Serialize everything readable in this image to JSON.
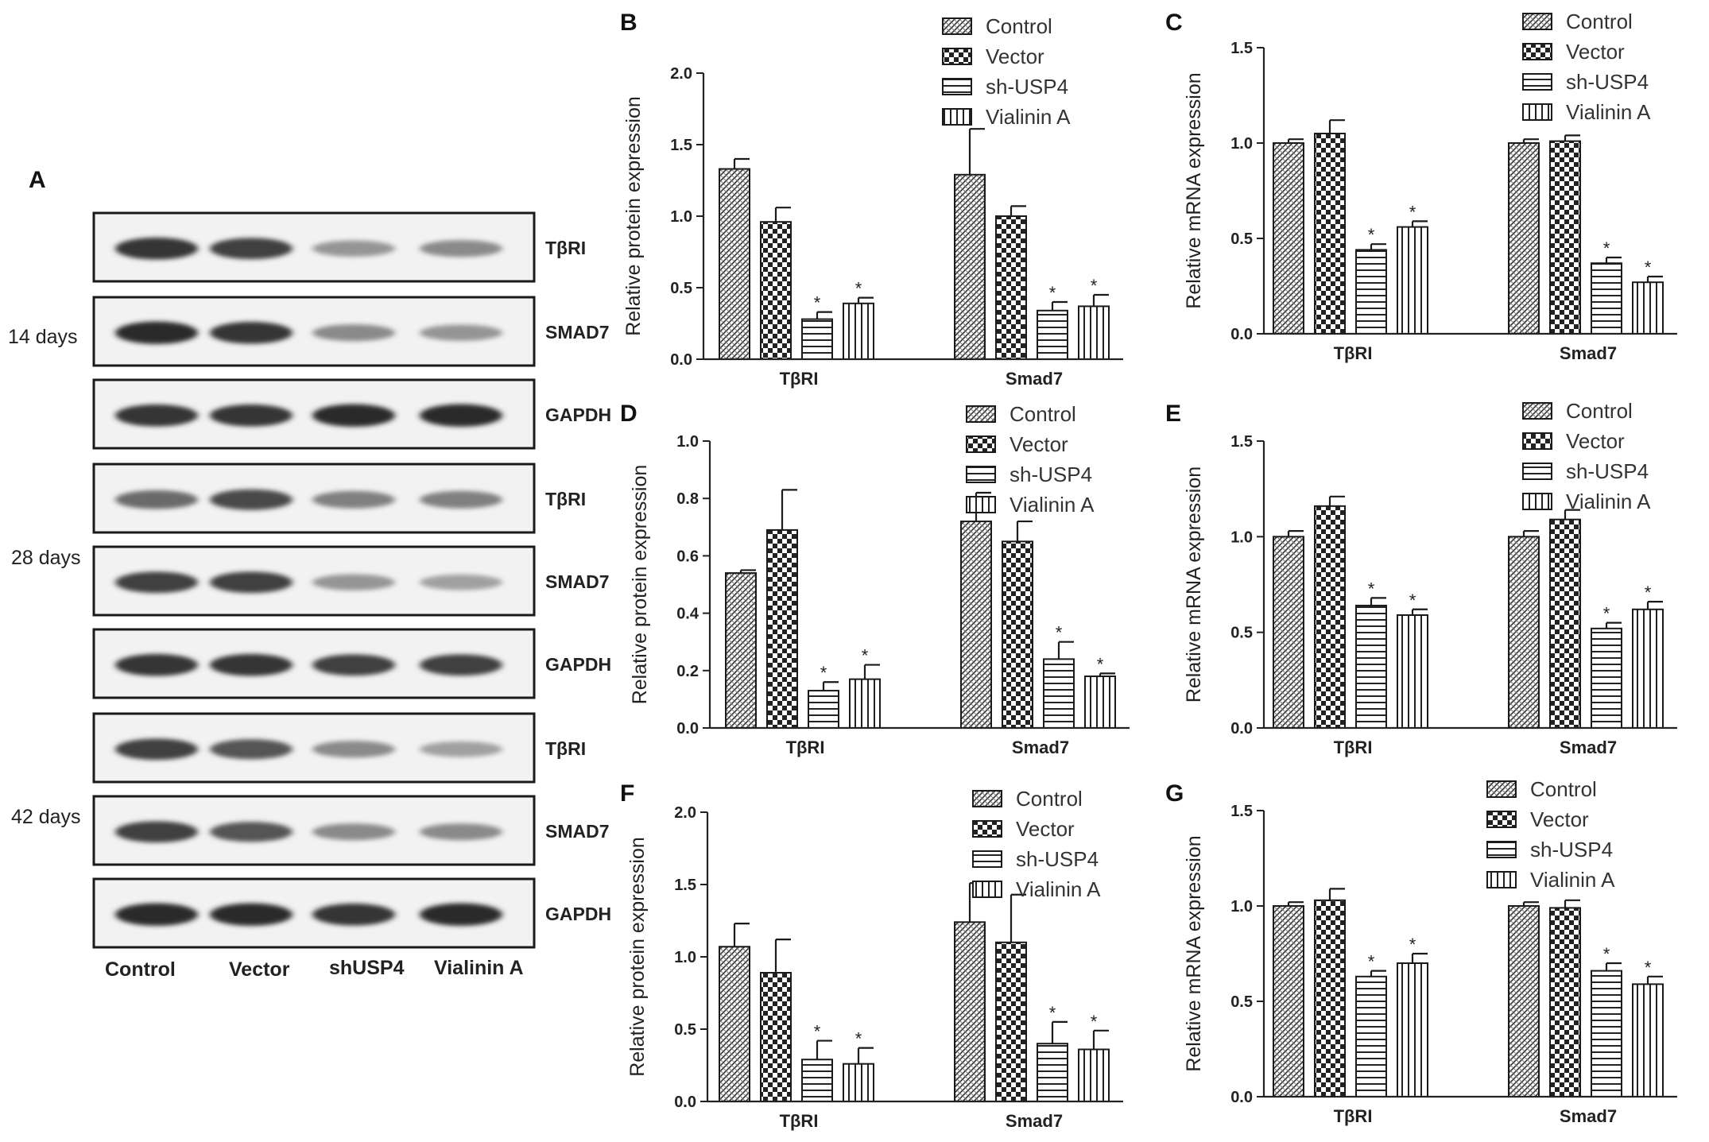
{
  "panel_a": {
    "letter": "A",
    "groups": [
      {
        "time": "14 days",
        "blots": [
          "TβRI",
          "SMAD7",
          "GAPDH"
        ]
      },
      {
        "time": "28 days",
        "blots": [
          "TβRI",
          "SMAD7",
          "GAPDH"
        ]
      },
      {
        "time": "42 days",
        "blots": [
          "TβRI",
          "SMAD7",
          "GAPDH"
        ]
      }
    ],
    "lanes": [
      "Control",
      "Vector",
      "shUSP4",
      "Vialinin A"
    ],
    "band_intensity": [
      [
        0.85,
        0.8,
        0.4,
        0.45
      ],
      [
        0.9,
        0.85,
        0.45,
        0.4
      ],
      [
        0.85,
        0.85,
        0.9,
        0.9
      ],
      [
        0.6,
        0.75,
        0.5,
        0.5
      ],
      [
        0.8,
        0.8,
        0.4,
        0.35
      ],
      [
        0.85,
        0.85,
        0.8,
        0.8
      ],
      [
        0.8,
        0.7,
        0.45,
        0.35
      ],
      [
        0.8,
        0.7,
        0.45,
        0.45
      ],
      [
        0.9,
        0.9,
        0.85,
        0.9
      ]
    ]
  },
  "colors": {
    "bar_fill": "#ffffff",
    "stroke": "#222222",
    "frame": "#1a1a1a"
  },
  "chart_data": [
    {
      "panel": "B",
      "type": "bar",
      "ylabel": "Relative protein expression",
      "ylim": [
        0,
        2.0
      ],
      "yticks": [
        "0.0",
        "0.5",
        "1.0",
        "1.5",
        "2.0"
      ],
      "ytick_values": [
        0,
        0.5,
        1.0,
        1.5,
        2.0
      ],
      "categories": [
        "TβRI",
        "Smad7"
      ],
      "legend": [
        "Control",
        "Vector",
        "sh-USP4",
        "Vialinin A"
      ],
      "series": [
        {
          "name": "Control",
          "pattern": "diag",
          "values": [
            1.33,
            1.29
          ],
          "errors": [
            0.07,
            0.32
          ],
          "stars": [
            false,
            false
          ]
        },
        {
          "name": "Vector",
          "pattern": "check",
          "values": [
            0.96,
            1.0
          ],
          "errors": [
            0.1,
            0.07
          ],
          "stars": [
            false,
            false
          ]
        },
        {
          "name": "sh-USP4",
          "pattern": "hlines",
          "values": [
            0.28,
            0.34
          ],
          "errors": [
            0.05,
            0.06
          ],
          "stars": [
            true,
            true
          ]
        },
        {
          "name": "Vialinin A",
          "pattern": "vlines",
          "values": [
            0.39,
            0.37
          ],
          "errors": [
            0.04,
            0.08
          ],
          "stars": [
            true,
            true
          ]
        }
      ]
    },
    {
      "panel": "C",
      "type": "bar",
      "ylabel": "Relative mRNA expression",
      "ylim": [
        0,
        1.5
      ],
      "yticks": [
        "0.0",
        "0.5",
        "1.0",
        "1.5"
      ],
      "ytick_values": [
        0,
        0.5,
        1.0,
        1.5
      ],
      "categories": [
        "TβRI",
        "Smad7"
      ],
      "legend": [
        "Control",
        "Vector",
        "sh-USP4",
        "Vialinin A"
      ],
      "series": [
        {
          "name": "Control",
          "pattern": "diag",
          "values": [
            1.0,
            1.0
          ],
          "errors": [
            0.02,
            0.02
          ],
          "stars": [
            false,
            false
          ]
        },
        {
          "name": "Vector",
          "pattern": "check",
          "values": [
            1.05,
            1.01
          ],
          "errors": [
            0.07,
            0.03
          ],
          "stars": [
            false,
            false
          ]
        },
        {
          "name": "sh-USP4",
          "pattern": "hlines",
          "values": [
            0.44,
            0.37
          ],
          "errors": [
            0.03,
            0.03
          ],
          "stars": [
            true,
            true
          ]
        },
        {
          "name": "Vialinin A",
          "pattern": "vlines",
          "values": [
            0.56,
            0.27
          ],
          "errors": [
            0.03,
            0.03
          ],
          "stars": [
            true,
            true
          ]
        }
      ]
    },
    {
      "panel": "D",
      "type": "bar",
      "ylabel": "Relative protein expression",
      "ylim": [
        0,
        1.0
      ],
      "yticks": [
        "0.0",
        "0.2",
        "0.4",
        "0.6",
        "0.8",
        "1.0"
      ],
      "ytick_values": [
        0,
        0.2,
        0.4,
        0.6,
        0.8,
        1.0
      ],
      "categories": [
        "TβRI",
        "Smad7"
      ],
      "legend": [
        "Control",
        "Vector",
        "sh-USP4",
        "Vialinin A"
      ],
      "series": [
        {
          "name": "Control",
          "pattern": "diag",
          "values": [
            0.54,
            0.72
          ],
          "errors": [
            0.01,
            0.1
          ],
          "stars": [
            false,
            false
          ]
        },
        {
          "name": "Vector",
          "pattern": "check",
          "values": [
            0.69,
            0.65
          ],
          "errors": [
            0.14,
            0.07
          ],
          "stars": [
            false,
            false
          ]
        },
        {
          "name": "sh-USP4",
          "pattern": "hlines",
          "values": [
            0.13,
            0.24
          ],
          "errors": [
            0.03,
            0.06
          ],
          "stars": [
            true,
            true
          ]
        },
        {
          "name": "Vialinin A",
          "pattern": "vlines",
          "values": [
            0.17,
            0.18
          ],
          "errors": [
            0.05,
            0.01
          ],
          "stars": [
            true,
            true
          ]
        }
      ]
    },
    {
      "panel": "E",
      "type": "bar",
      "ylabel": "Relative mRNA expression",
      "ylim": [
        0,
        1.5
      ],
      "yticks": [
        "0.0",
        "0.5",
        "1.0",
        "1.5"
      ],
      "ytick_values": [
        0,
        0.5,
        1.0,
        1.5
      ],
      "categories": [
        "TβRI",
        "Smad7"
      ],
      "legend": [
        "Control",
        "Vector",
        "sh-USP4",
        "Vialinin A"
      ],
      "series": [
        {
          "name": "Control",
          "pattern": "diag",
          "values": [
            1.0,
            1.0
          ],
          "errors": [
            0.03,
            0.03
          ],
          "stars": [
            false,
            false
          ]
        },
        {
          "name": "Vector",
          "pattern": "check",
          "values": [
            1.16,
            1.09
          ],
          "errors": [
            0.05,
            0.05
          ],
          "stars": [
            false,
            false
          ]
        },
        {
          "name": "sh-USP4",
          "pattern": "hlines",
          "values": [
            0.64,
            0.52
          ],
          "errors": [
            0.04,
            0.03
          ],
          "stars": [
            true,
            true
          ]
        },
        {
          "name": "Vialinin A",
          "pattern": "vlines",
          "values": [
            0.59,
            0.62
          ],
          "errors": [
            0.03,
            0.04
          ],
          "stars": [
            true,
            true
          ]
        }
      ]
    },
    {
      "panel": "F",
      "type": "bar",
      "ylabel": "Relative protein expression",
      "ylim": [
        0,
        2.0
      ],
      "yticks": [
        "0.0",
        "0.5",
        "1.0",
        "1.5",
        "2.0"
      ],
      "ytick_values": [
        0,
        0.5,
        1.0,
        1.5,
        2.0
      ],
      "categories": [
        "TβRI",
        "Smad7"
      ],
      "legend": [
        "Control",
        "Vector",
        "sh-USP4",
        "Vialinin A"
      ],
      "series": [
        {
          "name": "Control",
          "pattern": "diag",
          "values": [
            1.07,
            1.24
          ],
          "errors": [
            0.16,
            0.27
          ],
          "stars": [
            false,
            false
          ]
        },
        {
          "name": "Vector",
          "pattern": "check",
          "values": [
            0.89,
            1.1
          ],
          "errors": [
            0.23,
            0.33
          ],
          "stars": [
            false,
            false
          ]
        },
        {
          "name": "sh-USP4",
          "pattern": "hlines",
          "values": [
            0.29,
            0.4
          ],
          "errors": [
            0.13,
            0.15
          ],
          "stars": [
            true,
            true
          ]
        },
        {
          "name": "Vialinin A",
          "pattern": "vlines",
          "values": [
            0.26,
            0.36
          ],
          "errors": [
            0.11,
            0.13
          ],
          "stars": [
            true,
            true
          ]
        }
      ]
    },
    {
      "panel": "G",
      "type": "bar",
      "ylabel": "Relative mRNA expression",
      "ylim": [
        0,
        1.5
      ],
      "yticks": [
        "0.0",
        "0.5",
        "1.0",
        "1.5"
      ],
      "ytick_values": [
        0,
        0.5,
        1.0,
        1.5
      ],
      "categories": [
        "TβRI",
        "Smad7"
      ],
      "legend": [
        "Control",
        "Vector",
        "sh-USP4",
        "Vialinin A"
      ],
      "series": [
        {
          "name": "Control",
          "pattern": "diag",
          "values": [
            1.0,
            1.0
          ],
          "errors": [
            0.02,
            0.02
          ],
          "stars": [
            false,
            false
          ]
        },
        {
          "name": "Vector",
          "pattern": "check",
          "values": [
            1.03,
            0.99
          ],
          "errors": [
            0.06,
            0.04
          ],
          "stars": [
            false,
            false
          ]
        },
        {
          "name": "sh-USP4",
          "pattern": "hlines",
          "values": [
            0.63,
            0.66
          ],
          "errors": [
            0.03,
            0.04
          ],
          "stars": [
            true,
            true
          ]
        },
        {
          "name": "Vialinin A",
          "pattern": "vlines",
          "values": [
            0.7,
            0.59
          ],
          "errors": [
            0.05,
            0.04
          ],
          "stars": [
            true,
            true
          ]
        }
      ]
    }
  ]
}
